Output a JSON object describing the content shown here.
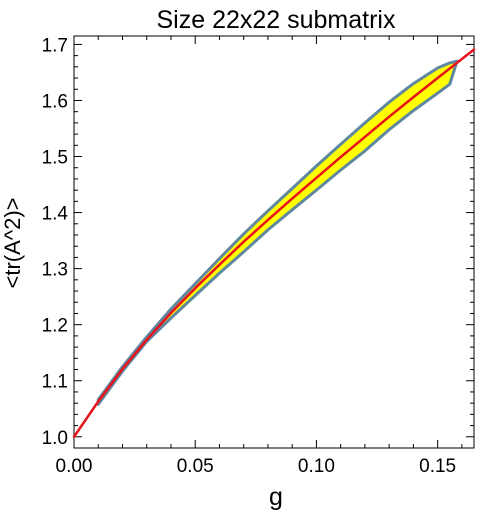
{
  "chart_data": {
    "type": "area",
    "title": "Size 22x22 submatrix",
    "xlabel": "g",
    "ylabel": "<tr(A^2)>",
    "xlim": [
      0.0,
      0.165
    ],
    "ylim": [
      0.98,
      1.715
    ],
    "xticks": [
      0.0,
      0.05,
      0.1,
      0.15
    ],
    "xtick_labels": [
      "0.00",
      "0.05",
      "0.10",
      "0.15"
    ],
    "yticks": [
      1.0,
      1.1,
      1.2,
      1.3,
      1.4,
      1.5,
      1.6,
      1.7
    ],
    "ytick_labels": [
      "1.0",
      "1.1",
      "1.2",
      "1.3",
      "1.4",
      "1.5",
      "1.6",
      "1.7"
    ],
    "grid": false,
    "series": [
      {
        "kind": "band",
        "fill_color": "#ffff00",
        "edge_color": "#5f87a0",
        "upper": {
          "x": [
            0.01,
            0.02,
            0.03,
            0.04,
            0.05,
            0.06,
            0.07,
            0.08,
            0.09,
            0.1,
            0.11,
            0.12,
            0.13,
            0.14,
            0.15,
            0.155,
            0.158
          ],
          "y": [
            1.066,
            1.125,
            1.178,
            1.228,
            1.273,
            1.318,
            1.362,
            1.403,
            1.443,
            1.483,
            1.522,
            1.56,
            1.597,
            1.63,
            1.658,
            1.667,
            1.67
          ]
        },
        "lower": {
          "x": [
            0.01,
            0.02,
            0.03,
            0.04,
            0.05,
            0.06,
            0.07,
            0.08,
            0.09,
            0.1,
            0.11,
            0.12,
            0.13,
            0.14,
            0.15,
            0.155,
            0.158
          ],
          "y": [
            1.058,
            1.117,
            1.17,
            1.212,
            1.252,
            1.292,
            1.33,
            1.369,
            1.405,
            1.44,
            1.476,
            1.51,
            1.548,
            1.582,
            1.613,
            1.629,
            1.67
          ]
        }
      },
      {
        "kind": "line",
        "color": "#e8121a",
        "x": [
          0.0,
          0.01,
          0.02,
          0.03,
          0.04,
          0.05,
          0.06,
          0.07,
          0.08,
          0.09,
          0.1,
          0.11,
          0.12,
          0.13,
          0.14,
          0.15,
          0.16,
          0.165
        ],
        "y": [
          1.0,
          1.063,
          1.121,
          1.173,
          1.221,
          1.265,
          1.307,
          1.348,
          1.387,
          1.425,
          1.462,
          1.499,
          1.535,
          1.571,
          1.606,
          1.64,
          1.674,
          1.691
        ]
      }
    ]
  }
}
